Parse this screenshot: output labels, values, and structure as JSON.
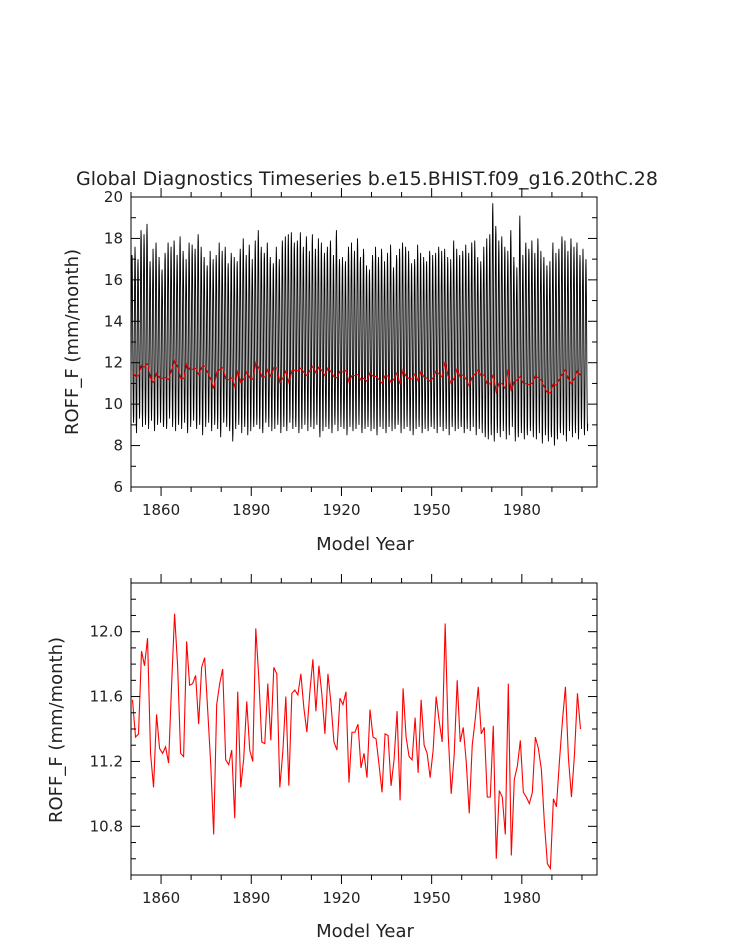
{
  "chart_data": [
    {
      "type": "line",
      "title": "Global Diagnostics Timeseries b.e15.BHIST.f09_g16.20thC.28",
      "xlabel": "Model Year",
      "ylabel": "ROFF_F (mm/month)",
      "xlim": [
        1850,
        2005
      ],
      "ylim": [
        6,
        20
      ],
      "xticks": [
        1860,
        1890,
        1920,
        1950,
        1980
      ],
      "yticks": [
        6,
        8,
        10,
        12,
        14,
        16,
        18,
        20
      ],
      "grid": false,
      "legend": "none",
      "series": [
        {
          "kind": "monthly",
          "color": "#000000",
          "annual_peaks": [
            17.2,
            17.6,
            17.0,
            18.4,
            18.2,
            18.7,
            16.9,
            17.5,
            17.8,
            17.1,
            16.5,
            17.3,
            17.8,
            17.6,
            17.9,
            17.2,
            18.1,
            17.4,
            17.0,
            17.8,
            17.7,
            17.5,
            18.2,
            17.6,
            17.1,
            16.7,
            17.4,
            17.0,
            17.2,
            17.8,
            17.4,
            17.6,
            16.8,
            17.3,
            17.1,
            16.9,
            17.5,
            18.0,
            17.2,
            17.7,
            17.0,
            17.9,
            18.4,
            17.6,
            17.3,
            17.8,
            17.1,
            16.8,
            17.6,
            17.0,
            17.9,
            18.1,
            18.2,
            18.3,
            17.8,
            17.9,
            18.3,
            17.6,
            18.1,
            17.4,
            18.2,
            17.5,
            18.0,
            17.8,
            17.3,
            17.6,
            17.9,
            17.2,
            18.4,
            17.0,
            17.1,
            16.9,
            17.6,
            17.8,
            17.4,
            18.0,
            17.1,
            17.5,
            16.7,
            16.5,
            17.2,
            17.6,
            17.1,
            17.5,
            16.9,
            17.3,
            17.7,
            16.6,
            17.2,
            17.5,
            17.8,
            17.6,
            17.4,
            16.8,
            17.0,
            17.7,
            17.3,
            17.1,
            16.9,
            17.4,
            17.2,
            17.3,
            17.6,
            17.4,
            17.5,
            17.1,
            17.0,
            17.9,
            17.5,
            17.2,
            17.4,
            17.7,
            17.3,
            17.8,
            17.9,
            17.1,
            16.9,
            17.6,
            18.0,
            18.2,
            19.7,
            18.6,
            17.9,
            18.1,
            17.6,
            17.4,
            18.4,
            17.1,
            16.6,
            19.1,
            17.2,
            17.8,
            17.5,
            17.9,
            17.3,
            18.0,
            17.4,
            17.1,
            16.7,
            16.9,
            17.8,
            17.3,
            17.5,
            18.1,
            17.9,
            17.4,
            18.0,
            17.6,
            17.8,
            17.2,
            17.5,
            17.0,
            16.8,
            16.5
          ],
          "annual_troughs": [
            9.1,
            8.6,
            9.3,
            8.9,
            9.0,
            8.8,
            9.2,
            8.7,
            9.0,
            9.1,
            8.9,
            8.8,
            9.3,
            8.9,
            8.7,
            9.0,
            8.8,
            9.1,
            8.6,
            8.9,
            9.2,
            8.8,
            9.0,
            8.5,
            8.9,
            9.1,
            8.7,
            9.0,
            8.8,
            8.4,
            9.1,
            8.9,
            8.7,
            8.2,
            8.8,
            9.0,
            8.6,
            8.9,
            8.5,
            8.7,
            8.9,
            9.0,
            8.8,
            8.6,
            9.1,
            8.9,
            8.7,
            8.8,
            9.0,
            8.6,
            8.9,
            8.7,
            9.1,
            8.8,
            8.9,
            8.6,
            8.8,
            9.0,
            8.7,
            8.9,
            8.8,
            9.0,
            8.4,
            8.7,
            8.9,
            8.8,
            8.6,
            9.0,
            8.7,
            8.9,
            8.8,
            8.5,
            8.9,
            8.7,
            8.8,
            9.0,
            8.6,
            8.8,
            8.9,
            8.7,
            8.8,
            8.5,
            8.9,
            8.8,
            8.6,
            8.9,
            8.7,
            8.8,
            9.0,
            8.6,
            8.8,
            8.9,
            8.7,
            8.5,
            8.8,
            8.9,
            8.6,
            8.8,
            8.7,
            8.9,
            8.8,
            8.6,
            8.9,
            8.7,
            8.8,
            8.5,
            8.9,
            8.7,
            8.8,
            8.9,
            8.6,
            8.8,
            8.7,
            8.9,
            8.5,
            8.8,
            8.6,
            8.4,
            8.3,
            8.5,
            8.2,
            8.6,
            8.4,
            8.7,
            8.3,
            8.5,
            8.9,
            8.2,
            8.4,
            8.6,
            8.3,
            8.5,
            8.7,
            8.4,
            8.3,
            8.6,
            8.1,
            8.5,
            8.2,
            8.4,
            8.0,
            8.3,
            8.6,
            8.5,
            8.2,
            8.7,
            8.4,
            8.6,
            8.3,
            8.8,
            8.5,
            8.7
          ]
        },
        {
          "kind": "annual_mean",
          "color": "#dd0000",
          "values": [
            11.58,
            11.35,
            11.37,
            11.88,
            11.79,
            11.96,
            11.25,
            11.04,
            11.49,
            11.28,
            11.25,
            11.29,
            11.19,
            11.67,
            12.11,
            11.79,
            11.25,
            11.23,
            11.94,
            11.67,
            11.68,
            11.73,
            11.43,
            11.78,
            11.84,
            11.52,
            11.19,
            10.75,
            11.55,
            11.68,
            11.77,
            11.21,
            11.18,
            11.27,
            10.85,
            11.63,
            11.04,
            11.22,
            11.57,
            11.27,
            11.2,
            12.02,
            11.72,
            11.32,
            11.31,
            11.68,
            11.33,
            11.78,
            11.74,
            11.04,
            11.26,
            11.6,
            11.05,
            11.62,
            11.64,
            11.61,
            11.74,
            11.53,
            11.38,
            11.63,
            11.83,
            11.51,
            11.79,
            11.61,
            11.37,
            11.74,
            11.56,
            11.32,
            11.27,
            11.59,
            11.55,
            11.63,
            11.07,
            11.38,
            11.38,
            11.43,
            11.16,
            11.25,
            11.1,
            11.52,
            11.35,
            11.34,
            11.18,
            11.01,
            11.37,
            11.36,
            11.05,
            11.21,
            11.51,
            10.96,
            11.65,
            11.35,
            11.23,
            11.21,
            11.47,
            11.13,
            11.58,
            11.3,
            11.25,
            11.1,
            11.27,
            11.6,
            11.45,
            11.32,
            12.05,
            11.37,
            11.0,
            11.24,
            11.7,
            11.32,
            11.41,
            11.2,
            10.88,
            11.3,
            11.46,
            11.66,
            11.37,
            11.41,
            10.98,
            10.98,
            11.42,
            10.6,
            11.02,
            10.98,
            10.75,
            11.68,
            10.62,
            11.09,
            11.17,
            11.33,
            11.01,
            10.98,
            10.94,
            11.01,
            11.35,
            11.28,
            11.15,
            10.82,
            10.57,
            10.54,
            10.97,
            10.92,
            11.2,
            11.45,
            11.66,
            11.22,
            10.98,
            11.24,
            11.62,
            11.4
          ]
        }
      ]
    },
    {
      "type": "line",
      "title": "",
      "xlabel": "Model Year",
      "ylabel": "ROFF_F (mm/month)",
      "xlim": [
        1850,
        2005
      ],
      "ylim": [
        10.5,
        12.3
      ],
      "xticks": [
        1860,
        1890,
        1920,
        1950,
        1980
      ],
      "yticks": [
        10.8,
        11.2,
        11.6,
        12.0
      ],
      "ytick_labels": [
        "10.8",
        "11.2",
        "11.6",
        "12.0"
      ],
      "grid": false,
      "legend": "none",
      "series": [
        {
          "kind": "annual_mean",
          "color": "#ff0000",
          "x_start": 1850,
          "values": [
            11.58,
            11.35,
            11.37,
            11.88,
            11.79,
            11.96,
            11.25,
            11.04,
            11.49,
            11.28,
            11.25,
            11.29,
            11.19,
            11.67,
            12.11,
            11.79,
            11.25,
            11.23,
            11.94,
            11.67,
            11.68,
            11.73,
            11.43,
            11.78,
            11.84,
            11.52,
            11.19,
            10.75,
            11.55,
            11.68,
            11.77,
            11.21,
            11.18,
            11.27,
            10.85,
            11.63,
            11.04,
            11.22,
            11.57,
            11.27,
            11.2,
            12.02,
            11.72,
            11.32,
            11.31,
            11.68,
            11.33,
            11.78,
            11.74,
            11.04,
            11.26,
            11.6,
            11.05,
            11.62,
            11.64,
            11.61,
            11.74,
            11.53,
            11.38,
            11.63,
            11.83,
            11.51,
            11.79,
            11.61,
            11.37,
            11.74,
            11.56,
            11.32,
            11.27,
            11.59,
            11.55,
            11.63,
            11.07,
            11.38,
            11.38,
            11.43,
            11.16,
            11.25,
            11.1,
            11.52,
            11.35,
            11.34,
            11.18,
            11.01,
            11.37,
            11.36,
            11.05,
            11.21,
            11.51,
            10.96,
            11.65,
            11.35,
            11.23,
            11.21,
            11.47,
            11.13,
            11.58,
            11.3,
            11.25,
            11.1,
            11.27,
            11.6,
            11.45,
            11.32,
            12.05,
            11.37,
            11.0,
            11.24,
            11.7,
            11.32,
            11.41,
            11.2,
            10.88,
            11.3,
            11.46,
            11.66,
            11.37,
            11.41,
            10.98,
            10.98,
            11.42,
            10.6,
            11.02,
            10.98,
            10.75,
            11.68,
            10.62,
            11.09,
            11.17,
            11.33,
            11.01,
            10.98,
            10.94,
            11.01,
            11.35,
            11.28,
            11.15,
            10.82,
            10.57,
            10.54,
            10.97,
            10.92,
            11.2,
            11.45,
            11.66,
            11.22,
            10.98,
            11.24,
            11.62,
            11.4
          ]
        }
      ]
    }
  ]
}
